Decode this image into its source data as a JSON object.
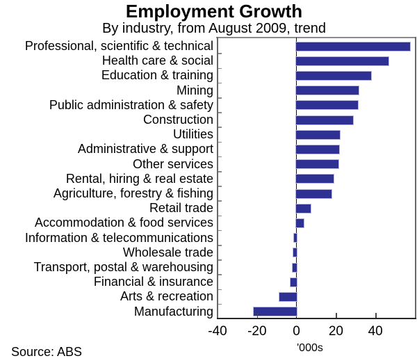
{
  "header": {
    "title": "Employment Growth",
    "subtitle": "By industry, from August 2009, trend"
  },
  "footer": {
    "source": "Source: ABS"
  },
  "chart_data": {
    "type": "bar",
    "orientation": "horizontal",
    "title": "Employment Growth",
    "subtitle": "By industry, from August 2009, trend",
    "xlabel": "'000s",
    "xlim": [
      -40,
      60
    ],
    "xticks": [
      -40,
      -20,
      0,
      20,
      40
    ],
    "grid": false,
    "legend": "none",
    "bar_color": "#2e3192",
    "bar_border_color": "#b7b8dc",
    "categories": [
      "Professional, scientific & technical",
      "Health care & social",
      "Education & training",
      "Mining",
      "Public administration & safety",
      "Construction",
      "Utilities",
      "Administrative & support",
      "Other services",
      "Rental, hiring & real estate",
      "Agriculture, forestry & fishing",
      "Retail trade",
      "Accommodation & food services",
      "Information & telecommunications",
      "Wholesale trade",
      "Transport, postal & warehousing",
      "Financial & insurance",
      "Arts & recreation",
      "Manufacturing"
    ],
    "values": [
      58,
      47,
      38,
      32,
      31.5,
      29,
      22.5,
      22,
      21.5,
      19,
      18,
      7.5,
      4,
      -1.5,
      -2,
      -2.5,
      -3.5,
      -9,
      -22
    ]
  }
}
